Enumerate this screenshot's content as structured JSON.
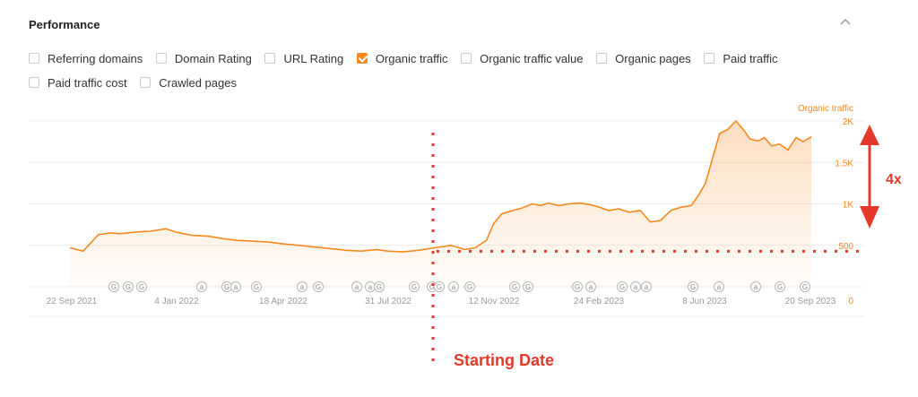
{
  "panel": {
    "title": "Performance",
    "collapse_icon": "chevron-up-icon"
  },
  "metrics": [
    {
      "label": "Referring domains",
      "checked": false
    },
    {
      "label": "Domain Rating",
      "checked": false
    },
    {
      "label": "URL Rating",
      "checked": false
    },
    {
      "label": "Organic traffic",
      "checked": true
    },
    {
      "label": "Organic traffic value",
      "checked": false
    },
    {
      "label": "Organic pages",
      "checked": false
    },
    {
      "label": "Paid traffic",
      "checked": false
    },
    {
      "label": "Paid traffic cost",
      "checked": false
    },
    {
      "label": "Crawled pages",
      "checked": false
    }
  ],
  "colors": {
    "series": "#f7891f",
    "annotation": "#e5392b",
    "grid": "#ececec",
    "event_marker": "#b5b5b5"
  },
  "chart_data": {
    "type": "area",
    "series": [
      {
        "name": "Organic traffic",
        "x": [
          "2021-09-22",
          "2021-10-05",
          "2021-10-20",
          "2021-11-01",
          "2021-11-10",
          "2021-11-25",
          "2021-12-10",
          "2021-12-25",
          "2022-01-04",
          "2022-01-12",
          "2022-01-20",
          "2022-02-05",
          "2022-02-20",
          "2022-03-05",
          "2022-03-20",
          "2022-04-05",
          "2022-04-18",
          "2022-05-05",
          "2022-05-20",
          "2022-06-05",
          "2022-06-20",
          "2022-07-05",
          "2022-07-20",
          "2022-07-31",
          "2022-08-15",
          "2022-08-30",
          "2022-09-15",
          "2022-10-01",
          "2022-10-15",
          "2022-10-25",
          "2022-11-05",
          "2022-11-12",
          "2022-11-20",
          "2022-12-01",
          "2022-12-10",
          "2022-12-20",
          "2022-12-28",
          "2023-01-05",
          "2023-01-15",
          "2023-01-25",
          "2023-02-05",
          "2023-02-15",
          "2023-02-24",
          "2023-03-05",
          "2023-03-15",
          "2023-03-25",
          "2023-04-05",
          "2023-04-15",
          "2023-04-25",
          "2023-05-05",
          "2023-05-15",
          "2023-05-25",
          "2023-06-01",
          "2023-06-08",
          "2023-06-15",
          "2023-06-22",
          "2023-06-30",
          "2023-07-08",
          "2023-07-15",
          "2023-07-22",
          "2023-07-30",
          "2023-08-05",
          "2023-08-12",
          "2023-08-20",
          "2023-08-28",
          "2023-09-05",
          "2023-09-12",
          "2023-09-20"
        ],
        "values": [
          470,
          430,
          630,
          650,
          640,
          660,
          670,
          700,
          660,
          640,
          620,
          610,
          580,
          560,
          550,
          540,
          520,
          500,
          480,
          460,
          440,
          430,
          450,
          430,
          420,
          440,
          470,
          500,
          450,
          470,
          560,
          760,
          880,
          920,
          950,
          1000,
          980,
          1010,
          980,
          1000,
          1010,
          990,
          960,
          920,
          940,
          900,
          920,
          780,
          800,
          920,
          960,
          980,
          1100,
          1250,
          1550,
          1850,
          1900,
          2000,
          1900,
          1780,
          1760,
          1800,
          1700,
          1720,
          1650,
          1800,
          1750,
          1810
        ]
      }
    ],
    "y_series_label": "Organic traffic",
    "ylim": [
      0,
      2000
    ],
    "yticks": [
      0,
      500,
      "1K",
      "1.5K",
      "2K"
    ],
    "xticks": [
      "22 Sep 2021",
      "4 Jan 2022",
      "18 Apr 2022",
      "31 Jul 2022",
      "12 Nov 2022",
      "24 Feb 2023",
      "8 Jun 2023",
      "20 Sep 2023"
    ],
    "grid": true,
    "events": [
      "G",
      "G",
      "G",
      "a",
      "G",
      "a",
      "G",
      "a",
      "G",
      "a",
      "a",
      "G",
      "G",
      "G",
      "G",
      "a",
      "G",
      "G",
      "G",
      "G",
      "a",
      "G",
      "a",
      "a",
      "G",
      "a",
      "a",
      "G",
      "G"
    ],
    "annotations": {
      "starting_date_label": "Starting Date",
      "growth_label": "4x"
    }
  }
}
